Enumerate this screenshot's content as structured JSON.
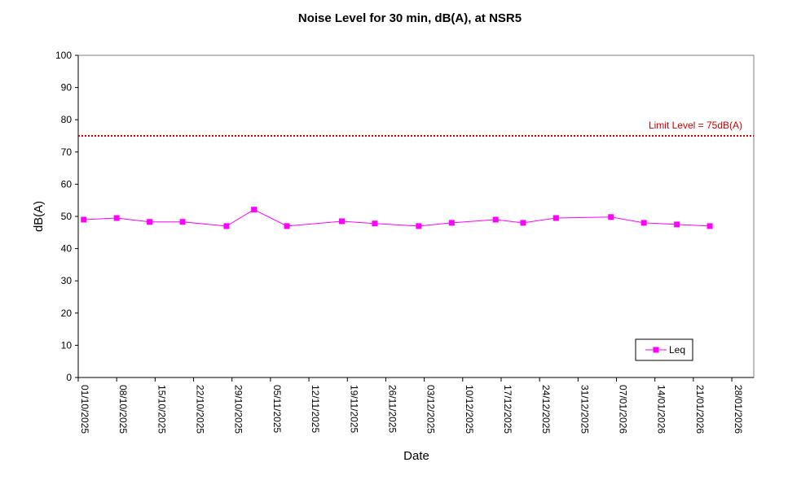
{
  "chart_data": {
    "type": "line",
    "title": "Noise Level for 30 min, dB(A), at NSR5",
    "xlabel": "Date",
    "ylabel": "dB(A)",
    "ylim": [
      0,
      100
    ],
    "yticks": [
      0,
      10,
      20,
      30,
      40,
      50,
      60,
      70,
      80,
      90,
      100
    ],
    "xlim": [
      "2025-10-01",
      "2026-02-01"
    ],
    "xticks": [
      "01/10/2025",
      "08/10/2025",
      "15/10/2025",
      "22/10/2025",
      "29/10/2025",
      "05/11/2025",
      "12/11/2025",
      "19/11/2025",
      "26/11/2025",
      "03/12/2025",
      "10/12/2025",
      "17/12/2025",
      "24/12/2025",
      "31/12/2025",
      "07/01/2026",
      "14/01/2026",
      "21/01/2026",
      "28/01/2026"
    ],
    "limit": {
      "value": 75,
      "label": "Limit Level  = 75dB(A)",
      "color": "#cc0000"
    },
    "legend_position": "bottom-right",
    "grid": false,
    "series": [
      {
        "name": "Leq",
        "color": "#ff00ff",
        "marker": "square",
        "points": [
          {
            "x": "2025-10-02",
            "y": 49.0
          },
          {
            "x": "2025-10-08",
            "y": 49.5
          },
          {
            "x": "2025-10-14",
            "y": 48.3
          },
          {
            "x": "2025-10-20",
            "y": 48.3
          },
          {
            "x": "2025-10-28",
            "y": 47.0
          },
          {
            "x": "2025-11-02",
            "y": 52.1
          },
          {
            "x": "2025-11-08",
            "y": 47.0
          },
          {
            "x": "2025-11-18",
            "y": 48.5
          },
          {
            "x": "2025-11-24",
            "y": 47.8
          },
          {
            "x": "2025-12-02",
            "y": 47.0
          },
          {
            "x": "2025-12-08",
            "y": 48.0
          },
          {
            "x": "2025-12-16",
            "y": 49.0
          },
          {
            "x": "2025-12-21",
            "y": 48.0
          },
          {
            "x": "2025-12-27",
            "y": 49.5
          },
          {
            "x": "2026-01-06",
            "y": 49.8
          },
          {
            "x": "2026-01-12",
            "y": 48.0
          },
          {
            "x": "2026-01-18",
            "y": 47.5
          },
          {
            "x": "2026-01-24",
            "y": 47.0
          }
        ]
      }
    ]
  }
}
